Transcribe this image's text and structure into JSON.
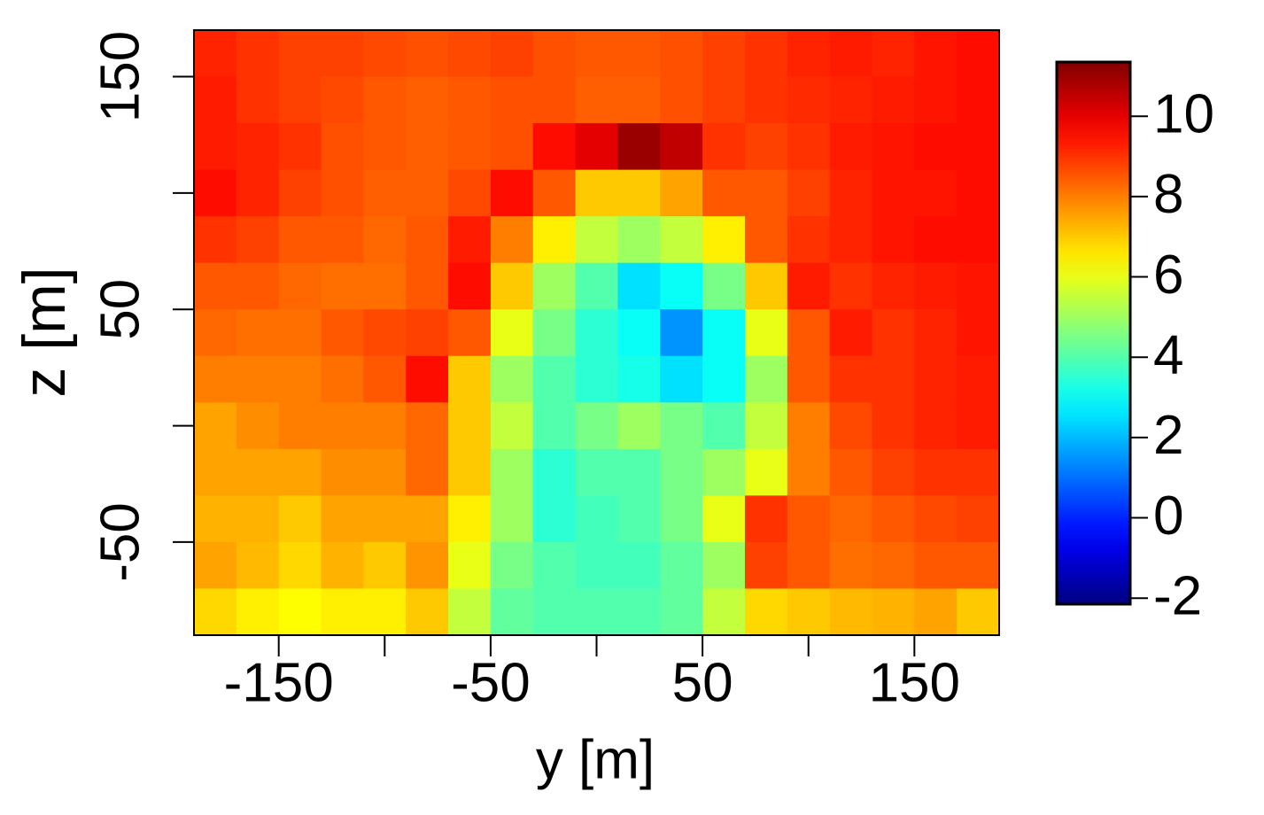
{
  "chart_data": {
    "type": "heatmap",
    "xlabel": "y [m]",
    "ylabel": "z [m]",
    "xlim": [
      -190,
      190
    ],
    "ylim": [
      -90,
      170
    ],
    "xticks": [
      -150,
      -50,
      50,
      150
    ],
    "xticks_minor": [
      -100,
      0,
      100
    ],
    "yticks": [
      -50,
      50,
      150
    ],
    "yticks_minor": [
      0,
      100
    ],
    "colormap": "jet",
    "clim": [
      -2.15,
      11.35
    ],
    "cticks": [
      -2,
      0,
      2,
      4,
      6,
      8,
      10
    ],
    "x": [
      -180,
      -160,
      -140,
      -120,
      -100,
      -80,
      -60,
      -40,
      -20,
      0,
      20,
      40,
      60,
      80,
      100,
      120,
      140,
      160,
      180
    ],
    "y": [
      160,
      140,
      120,
      100,
      80,
      60,
      40,
      20,
      0,
      -20,
      -40,
      -60,
      -80
    ],
    "z": [
      [
        9.2,
        9,
        8.8,
        8.8,
        8.7,
        8.6,
        8.7,
        8.8,
        8.6,
        8.5,
        8.5,
        8.6,
        8.8,
        9,
        9.2,
        9.3,
        9.2,
        9.4,
        9.5
      ],
      [
        9.3,
        9,
        8.8,
        8.7,
        8.5,
        8.4,
        8.5,
        8.6,
        8.6,
        8.4,
        8.4,
        8.6,
        8.8,
        9,
        9.1,
        9.2,
        9.3,
        9.4,
        9.5
      ],
      [
        9.3,
        9.2,
        9,
        8.6,
        8.5,
        8.4,
        8.5,
        8.6,
        9.5,
        10,
        11,
        10.5,
        9,
        8.8,
        9,
        9.3,
        9.4,
        9.5,
        9.5
      ],
      [
        9.5,
        9.2,
        8.8,
        8.6,
        8.4,
        8.4,
        8.7,
        9.5,
        8.5,
        7,
        7,
        7.5,
        8.5,
        8.5,
        8.8,
        9.2,
        9.4,
        9.4,
        9.5
      ],
      [
        9,
        8.8,
        8.5,
        8.5,
        8.3,
        8.5,
        9.3,
        8,
        6.5,
        5.5,
        5,
        5.5,
        6.5,
        8.5,
        9,
        9.2,
        9.4,
        9.5,
        9.5
      ],
      [
        8.5,
        8.5,
        8.3,
        8.2,
        8.2,
        8.5,
        9.5,
        7,
        5,
        4,
        2.5,
        3,
        4.5,
        7,
        9.3,
        9,
        9.2,
        9.3,
        9.4
      ],
      [
        8.3,
        8.2,
        8.2,
        8.5,
        8.7,
        8.8,
        8.5,
        6,
        4.5,
        3.5,
        3,
        1.5,
        3,
        6,
        8.5,
        9.3,
        9,
        9.2,
        9.4
      ],
      [
        8,
        8,
        8,
        8.2,
        8.5,
        9.5,
        7,
        5,
        4,
        3.5,
        3.2,
        2.5,
        3,
        5,
        8.5,
        9,
        9,
        9.2,
        9.3
      ],
      [
        7.5,
        7.8,
        8,
        8,
        8,
        8.3,
        7,
        5.5,
        4,
        4.5,
        5,
        4.5,
        4,
        5.5,
        8,
        8.7,
        9,
        9.2,
        9.3
      ],
      [
        7.5,
        7.5,
        7.5,
        7.8,
        7.8,
        8.3,
        7,
        5,
        3.5,
        4,
        4,
        4.5,
        5,
        6,
        8,
        8.5,
        8.8,
        9,
        9
      ],
      [
        7.3,
        7.3,
        7,
        7.5,
        7.5,
        7.5,
        6.5,
        5,
        3.5,
        3.8,
        4,
        4.5,
        6,
        9,
        8.5,
        8.3,
        8.5,
        8.7,
        8.8
      ],
      [
        7.5,
        7.2,
        6.8,
        7.3,
        7,
        7.7,
        6,
        4.5,
        4,
        3.8,
        3.8,
        4.2,
        5,
        8.8,
        8.5,
        8.2,
        8.3,
        8.5,
        8.5
      ],
      [
        6.8,
        6.5,
        6.3,
        6.5,
        6.5,
        7,
        5.5,
        4.2,
        4,
        4,
        4,
        4.2,
        5.5,
        6.8,
        7,
        7.2,
        7.3,
        7.5,
        7
      ]
    ]
  }
}
